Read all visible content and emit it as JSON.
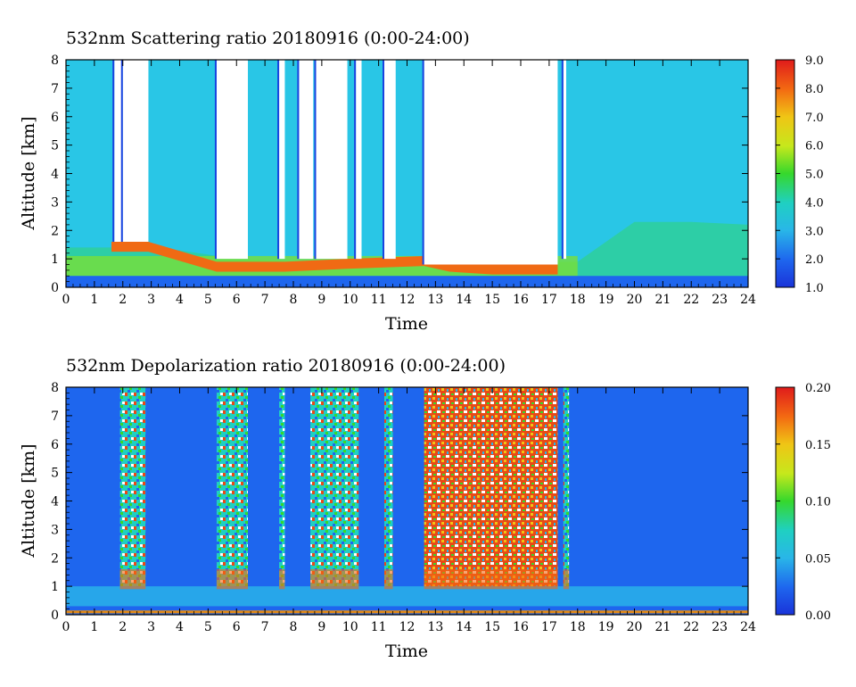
{
  "chart_data": [
    {
      "type": "heatmap",
      "title": "532nm Scattering ratio   20180916 (0:00-24:00)",
      "xlabel": "Time",
      "ylabel": "Altitude [km]",
      "xlim": [
        0,
        24
      ],
      "ylim": [
        0,
        8
      ],
      "x_ticks": [
        "0",
        "1",
        "2",
        "3",
        "4",
        "5",
        "6",
        "7",
        "8",
        "9",
        "10",
        "11",
        "12",
        "13",
        "14",
        "15",
        "16",
        "17",
        "18",
        "19",
        "20",
        "21",
        "22",
        "23",
        "24"
      ],
      "y_ticks": [
        "0",
        "1",
        "2",
        "3",
        "4",
        "5",
        "6",
        "7",
        "8"
      ],
      "colorbar": {
        "min": 1.0,
        "max": 9.0,
        "tick_values": [
          1.0,
          2.0,
          3.0,
          4.0,
          5.0,
          6.0,
          7.0,
          8.0,
          9.0
        ],
        "ticks": [
          "1.0",
          "2.0",
          "3.0",
          "4.0",
          "5.0",
          "6.0",
          "7.0",
          "8.0",
          "9.0"
        ]
      },
      "white_columns": [
        [
          1.7,
          2.0
        ],
        [
          2.0,
          2.9
        ],
        [
          5.3,
          6.4
        ],
        [
          7.5,
          7.7
        ],
        [
          8.2,
          8.7
        ],
        [
          8.8,
          9.9
        ],
        [
          10.2,
          10.4
        ],
        [
          11.2,
          11.6
        ],
        [
          12.6,
          17.3
        ],
        [
          17.5,
          17.6
        ]
      ],
      "boundary_layer_top_km": [
        [
          0,
          1.4
        ],
        [
          2,
          1.4
        ],
        [
          4,
          1.3
        ],
        [
          6,
          1.0
        ],
        [
          8,
          0.9
        ],
        [
          10,
          1.0
        ],
        [
          12,
          1.0
        ],
        [
          14,
          0.9
        ],
        [
          16,
          0.9
        ],
        [
          18,
          0.9
        ],
        [
          20,
          2.3
        ],
        [
          22,
          2.3
        ],
        [
          24,
          2.2
        ]
      ],
      "cloud_base_km": [
        [
          1.6,
          1.6
        ],
        [
          2.9,
          1.6
        ],
        [
          5.3,
          0.9
        ],
        [
          6.4,
          0.9
        ],
        [
          7.7,
          0.9
        ],
        [
          9.9,
          1.0
        ],
        [
          12.6,
          1.1
        ],
        [
          13.5,
          0.9
        ],
        [
          15.0,
          0.8
        ],
        [
          16.5,
          0.8
        ],
        [
          17.3,
          0.8
        ]
      ]
    },
    {
      "type": "heatmap",
      "title": "532nm Depolarization ratio   20180916 (0:00-24:00)",
      "xlabel": "Time",
      "ylabel": "Altitude [km]",
      "xlim": [
        0,
        24
      ],
      "ylim": [
        0,
        8
      ],
      "x_ticks": [
        "0",
        "1",
        "2",
        "3",
        "4",
        "5",
        "6",
        "7",
        "8",
        "9",
        "10",
        "11",
        "12",
        "13",
        "14",
        "15",
        "16",
        "17",
        "18",
        "19",
        "20",
        "21",
        "22",
        "23",
        "24"
      ],
      "y_ticks": [
        "0",
        "1",
        "2",
        "3",
        "4",
        "5",
        "6",
        "7",
        "8"
      ],
      "colorbar": {
        "min": 0.0,
        "max": 0.2,
        "tick_values": [
          0.0,
          0.05,
          0.1,
          0.15,
          0.2
        ],
        "ticks": [
          "0.00",
          "0.05",
          "0.10",
          "0.15",
          "0.20"
        ]
      },
      "high_depol_columns": [
        [
          1.9,
          2.8
        ],
        [
          5.3,
          6.4
        ],
        [
          7.5,
          7.7
        ],
        [
          8.6,
          10.3
        ],
        [
          11.2,
          11.5
        ],
        [
          12.6,
          17.3
        ],
        [
          17.5,
          17.7
        ]
      ]
    }
  ]
}
